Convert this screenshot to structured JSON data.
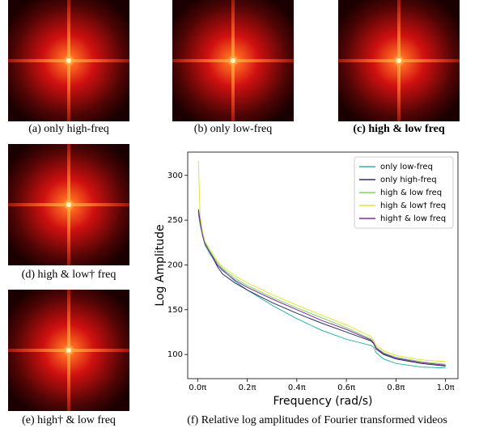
{
  "panels": [
    {
      "caption": "(a) only high-freq"
    },
    {
      "caption": "(b) only low-freq"
    },
    {
      "caption": "(c) high & low freq"
    },
    {
      "caption": "(d) high & low† freq"
    },
    {
      "caption": "(e) high† & low freq"
    },
    {
      "caption": "(f) Relative log amplitudes of Fourier transformed videos"
    }
  ],
  "chart_data": {
    "type": "line",
    "xlabel": "Frequency (rad/s)",
    "ylabel": "Log Amplitude",
    "x": [
      0.003,
      0.01,
      0.02,
      0.03,
      0.05,
      0.08,
      0.1,
      0.15,
      0.2,
      0.3,
      0.4,
      0.5,
      0.6,
      0.7,
      0.71,
      0.72,
      0.75,
      0.8,
      0.9,
      1.0
    ],
    "xlim": [
      -0.04,
      1.05
    ],
    "xticks": [
      {
        "value": 0,
        "label": "0.0π"
      },
      {
        "value": 0.2,
        "label": "0.2π"
      },
      {
        "value": 0.4,
        "label": "0.4π"
      },
      {
        "value": 0.6,
        "label": "0.6π"
      },
      {
        "value": 0.8,
        "label": "0.8π"
      },
      {
        "value": 1,
        "label": "1.0π"
      }
    ],
    "ylim": [
      73,
      326
    ],
    "yticks": [
      100,
      150,
      200,
      250,
      300
    ],
    "legend": "upper right",
    "series": [
      {
        "name": "only low-freq",
        "color": "#2bb5a3",
        "values": [
          258,
          245,
          232,
          222,
          212,
          200,
          195,
          182,
          172,
          155,
          140,
          127,
          117,
          110,
          108,
          102,
          95,
          90,
          86,
          85
        ]
      },
      {
        "name": "only high-freq",
        "color": "#2b2d5e",
        "values": [
          262,
          250,
          235,
          225,
          214,
          198,
          190,
          180,
          172,
          158,
          146,
          135,
          125,
          115,
          112,
          106,
          100,
          95,
          90,
          87
        ]
      },
      {
        "name": "high & low freq",
        "color": "#7fd65a",
        "values": [
          255,
          248,
          234,
          224,
          215,
          202,
          196,
          185,
          177,
          164,
          152,
          141,
          130,
          117,
          113,
          108,
          102,
          97,
          92,
          89
        ]
      },
      {
        "name": "high & low† freq",
        "color": "#e6e13a",
        "values": [
          316,
          255,
          237,
          226,
          217,
          204,
          198,
          188,
          180,
          167,
          155,
          144,
          133,
          120,
          115,
          110,
          104,
          99,
          94,
          92
        ]
      },
      {
        "name": "high† & low freq",
        "color": "#7a2fa6",
        "values": [
          260,
          247,
          233,
          223,
          214,
          200,
          194,
          183,
          175,
          162,
          150,
          138,
          128,
          116,
          113,
          107,
          101,
          96,
          91,
          88
        ]
      }
    ]
  }
}
